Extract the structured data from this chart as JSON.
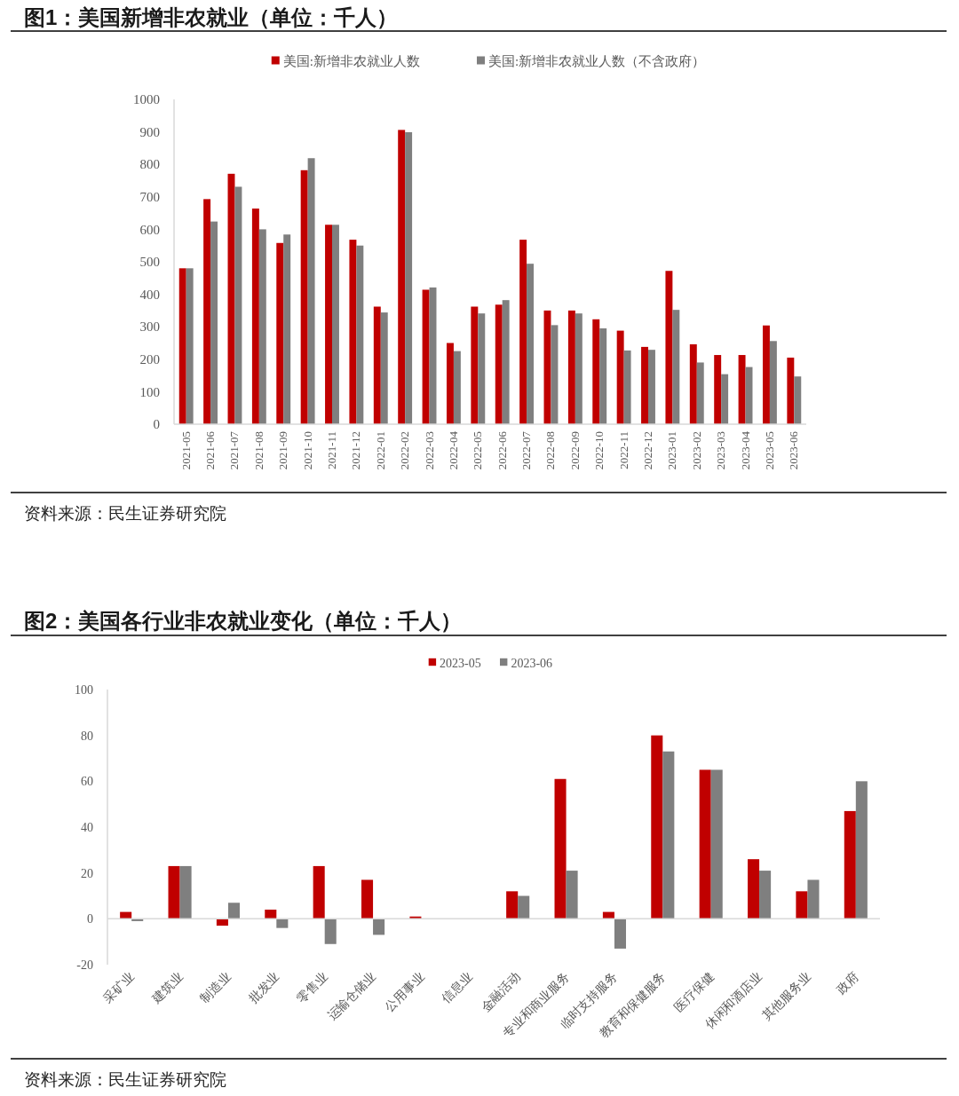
{
  "chart_data": [
    {
      "type": "bar",
      "title": "图1：美国新增非农就业（单位：千人）",
      "categories": [
        "2021-05",
        "2021-06",
        "2021-07",
        "2021-08",
        "2021-09",
        "2021-10",
        "2021-11",
        "2021-12",
        "2022-01",
        "2022-02",
        "2022-03",
        "2022-04",
        "2022-05",
        "2022-06",
        "2022-07",
        "2022-08",
        "2022-09",
        "2022-10",
        "2022-11",
        "2022-12",
        "2023-01",
        "2023-02",
        "2023-03",
        "2023-04",
        "2023-05",
        "2023-06"
      ],
      "series": [
        {
          "name": "美国:新增非农就业人数",
          "color": "#c00000",
          "values": [
            480,
            693,
            771,
            664,
            558,
            782,
            614,
            568,
            362,
            906,
            414,
            250,
            362,
            368,
            568,
            350,
            350,
            323,
            288,
            238,
            472,
            246,
            213,
            213,
            304,
            205
          ]
        },
        {
          "name": "美国:新增非农就业人数（不含政府）",
          "color": "#7f7f7f",
          "values": [
            480,
            624,
            731,
            600,
            584,
            819,
            614,
            550,
            344,
            899,
            421,
            225,
            341,
            382,
            494,
            305,
            341,
            295,
            227,
            229,
            352,
            190,
            154,
            176,
            256,
            147
          ]
        }
      ],
      "ylim": [
        0,
        1000
      ],
      "yticks": [
        0,
        100,
        200,
        300,
        400,
        500,
        600,
        700,
        800,
        900,
        1000
      ],
      "legend": "top",
      "annotations": [
        "资料来源：民生证券研究院"
      ]
    },
    {
      "type": "bar",
      "title": "图2：美国各行业非农就业变化（单位：千人）",
      "categories": [
        "采矿业",
        "建筑业",
        "制造业",
        "批发业",
        "零售业",
        "运输仓储业",
        "公用事业",
        "信息业",
        "金融活动",
        "专业和商业服务",
        "临时支持服务",
        "教育和保健服务",
        "医疗保健",
        "休闲和酒店业",
        "其他服务业",
        "政府"
      ],
      "series": [
        {
          "name": "2023-05",
          "color": "#c00000",
          "values": [
            3,
            23,
            -3,
            4,
            23,
            17,
            1,
            0,
            12,
            61,
            3,
            80,
            65,
            26,
            12,
            47
          ]
        },
        {
          "name": "2023-06",
          "color": "#7f7f7f",
          "values": [
            -1,
            23,
            7,
            -4,
            -11,
            -7,
            0,
            0,
            10,
            21,
            -13,
            73,
            65,
            21,
            17,
            60
          ]
        }
      ],
      "ylim": [
        -20,
        100
      ],
      "yticks": [
        -20,
        0,
        20,
        40,
        60,
        80,
        100
      ],
      "legend": "top",
      "annotations": [
        "资料来源：民生证券研究院"
      ]
    }
  ]
}
